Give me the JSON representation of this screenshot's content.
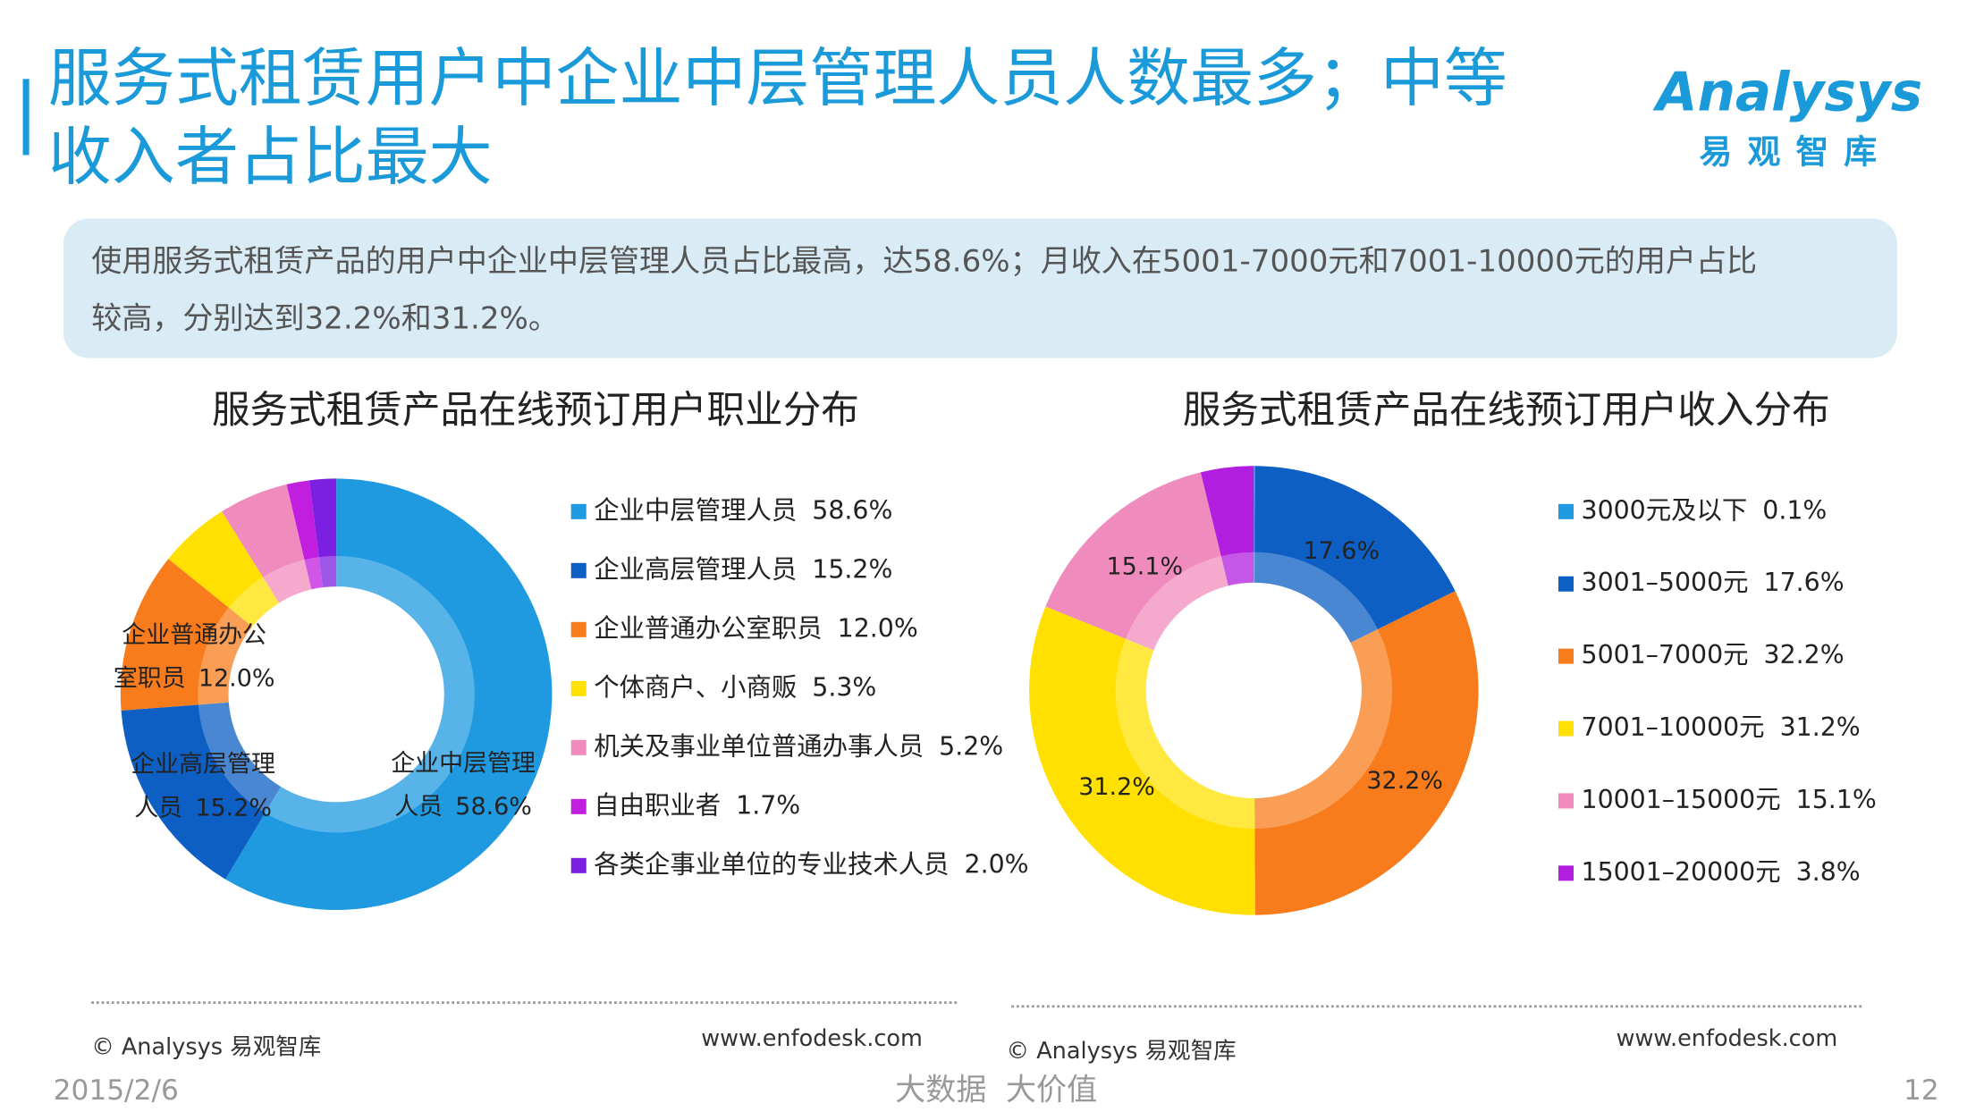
{
  "slide": {
    "title": [
      "服务式租赁用户中企业中层管理人员人数最多；中等",
      "收入者占比最大"
    ],
    "logo": "Analysys",
    "logo_sub": "易观智库",
    "summary": [
      "使用服务式租赁产品的用户中企业中层管理人员占比最高，达58.6%；月收入在5001-7000元和7001-10000元的用户占比",
      "较高，分别达到32.2%和31.2%。"
    ],
    "source_left": "© Analysys 易观智库",
    "url_left": "www.enfodesk.com",
    "source_right": "© Analysys 易观智库",
    "url_right": "www.enfodesk.com",
    "date": "2015/2/6",
    "slogan": "大数据  大价值",
    "page": "12"
  },
  "chart_data": [
    {
      "type": "pie",
      "title": "服务式租赁产品在线预订用户职业分布",
      "categories": [
        "企业中层管理人员",
        "企业高层管理人员",
        "企业普通办公室职员",
        "个体商户、小商贩",
        "机关及事业单位普通办事人员",
        "自由职业者",
        "各类企事业单位的专业技术人员"
      ],
      "values": [
        58.6,
        15.2,
        12.0,
        5.3,
        5.2,
        1.7,
        2.0
      ],
      "value_labels": [
        "58.6%",
        "15.2%",
        "12.0%",
        "5.3%",
        "5.2%",
        "1.7%",
        "2.0%"
      ],
      "colors": [
        "#1f9ae0",
        "#0d5fc4",
        "#f97c1c",
        "#ffe000",
        "#f08cbd",
        "#c21ee0",
        "#7b1fe0"
      ]
    },
    {
      "type": "pie",
      "title": "服务式租赁产品在线预订用户收入分布",
      "categories": [
        "3000元及以下",
        "3001–5000元",
        "5001–7000元",
        "7001–10000元",
        "10001–15000元",
        "15001–20000元"
      ],
      "values": [
        0.1,
        17.6,
        32.2,
        31.2,
        15.1,
        3.8
      ],
      "value_labels": [
        "0.1%",
        "17.6%",
        "32.2%",
        "31.2%",
        "15.1%",
        "3.8%"
      ],
      "colors": [
        "#1f9ae0",
        "#0d5fc4",
        "#f97c1c",
        "#ffe000",
        "#f08cbd",
        "#b21ee0"
      ]
    }
  ]
}
